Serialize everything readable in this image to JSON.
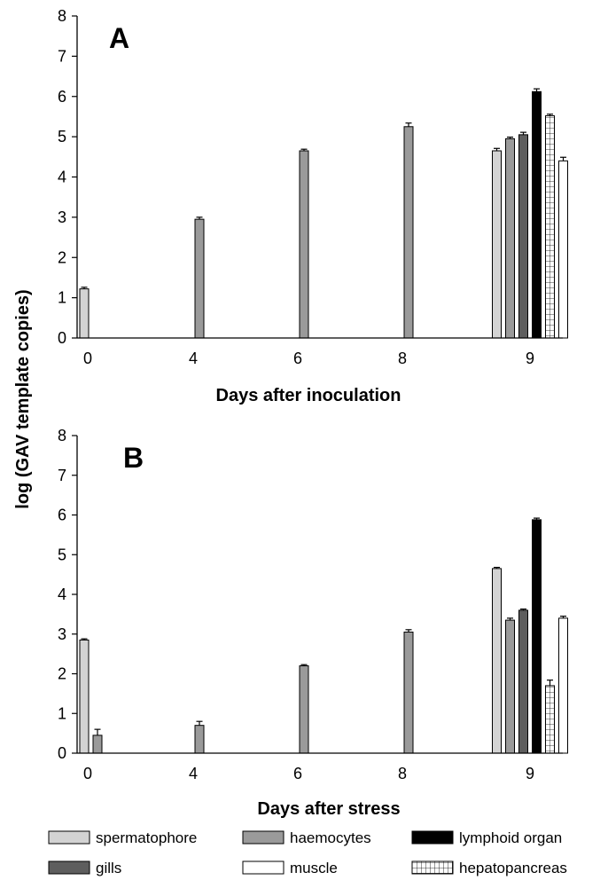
{
  "chart_data": {
    "type": "bar",
    "ylabel": "log (GAV template copies)",
    "ylim": [
      0,
      8
    ],
    "yticks": [
      "0",
      "1",
      "2",
      "3",
      "4",
      "5",
      "6",
      "7",
      "8"
    ],
    "categories": [
      "0",
      "4",
      "6",
      "8",
      "9"
    ],
    "tissues": [
      {
        "name": "spermatophore",
        "fill": "#d3d3d3",
        "pattern": "solid"
      },
      {
        "name": "haemocytes",
        "fill": "#9a9a9a",
        "pattern": "solid"
      },
      {
        "name": "lymphoid organ",
        "fill": "#000000",
        "pattern": "solid"
      },
      {
        "name": "gills",
        "fill": "#5e5e5e",
        "pattern": "solid"
      },
      {
        "name": "muscle",
        "fill": "#ffffff",
        "pattern": "solid"
      },
      {
        "name": "hepatopancreas",
        "fill": "#ffffff",
        "pattern": "grid"
      }
    ],
    "order_at_day9": [
      "spermatophore",
      "haemocytes",
      "gills",
      "lymphoid organ",
      "hepatopancreas",
      "muscle"
    ],
    "panels": [
      {
        "label": "A",
        "xlabel": "Days after inoculation",
        "bars": [
          {
            "day": "0",
            "tissue": "spermatophore",
            "value": 1.22,
            "error": 0.04
          },
          {
            "day": "4",
            "tissue": "haemocytes",
            "value": 2.95,
            "error": 0.05
          },
          {
            "day": "6",
            "tissue": "haemocytes",
            "value": 4.65,
            "error": 0.04
          },
          {
            "day": "8",
            "tissue": "haemocytes",
            "value": 5.25,
            "error": 0.09
          },
          {
            "day": "9",
            "tissue": "spermatophore",
            "value": 4.65,
            "error": 0.06
          },
          {
            "day": "9",
            "tissue": "haemocytes",
            "value": 4.95,
            "error": 0.04
          },
          {
            "day": "9",
            "tissue": "gills",
            "value": 5.05,
            "error": 0.06
          },
          {
            "day": "9",
            "tissue": "lymphoid organ",
            "value": 6.12,
            "error": 0.07
          },
          {
            "day": "9",
            "tissue": "hepatopancreas",
            "value": 5.52,
            "error": 0.04
          },
          {
            "day": "9",
            "tissue": "muscle",
            "value": 4.4,
            "error": 0.09
          }
        ]
      },
      {
        "label": "B",
        "xlabel": "Days after stress",
        "bars": [
          {
            "day": "0",
            "tissue": "spermatophore",
            "value": 2.85,
            "error": 0.03
          },
          {
            "day": "0",
            "tissue": "haemocytes",
            "value": 0.45,
            "error": 0.15
          },
          {
            "day": "4",
            "tissue": "haemocytes",
            "value": 0.7,
            "error": 0.1
          },
          {
            "day": "6",
            "tissue": "haemocytes",
            "value": 2.2,
            "error": 0.03
          },
          {
            "day": "8",
            "tissue": "haemocytes",
            "value": 3.05,
            "error": 0.06
          },
          {
            "day": "9",
            "tissue": "spermatophore",
            "value": 4.65,
            "error": 0.03
          },
          {
            "day": "9",
            "tissue": "haemocytes",
            "value": 3.35,
            "error": 0.05
          },
          {
            "day": "9",
            "tissue": "gills",
            "value": 3.6,
            "error": 0.03
          },
          {
            "day": "9",
            "tissue": "lymphoid organ",
            "value": 5.88,
            "error": 0.04
          },
          {
            "day": "9",
            "tissue": "hepatopancreas",
            "value": 1.7,
            "error": 0.14
          },
          {
            "day": "9",
            "tissue": "muscle",
            "value": 3.4,
            "error": 0.05
          }
        ]
      }
    ],
    "legend": {
      "position": "bottom",
      "entries": [
        "spermatophore",
        "haemocytes",
        "lymphoid organ",
        "gills",
        "muscle",
        "hepatopancreas"
      ]
    }
  }
}
